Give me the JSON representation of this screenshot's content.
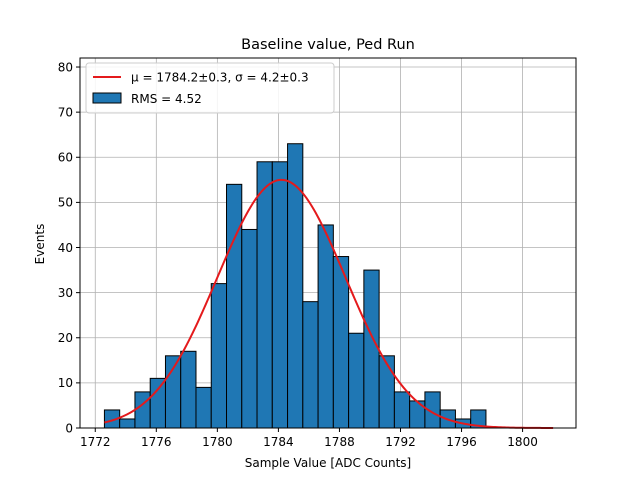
{
  "chart_data": {
    "type": "bar",
    "title": "Baseline value, Ped Run",
    "xlabel": "Sample Value [ADC Counts]",
    "ylabel": "Events",
    "xlim": [
      1771,
      1803.5
    ],
    "ylim": [
      0,
      82
    ],
    "xticks": [
      1772,
      1776,
      1780,
      1784,
      1788,
      1792,
      1796,
      1800
    ],
    "yticks": [
      0,
      10,
      20,
      30,
      40,
      50,
      60,
      70,
      80
    ],
    "grid": true,
    "legend_placement": "top-left",
    "histogram": {
      "name": "RMS = 4.52",
      "bin_start": 1772.6,
      "bin_width": 1,
      "counts": [
        4,
        2,
        8,
        11,
        16,
        17,
        9,
        32,
        54,
        44,
        59,
        59,
        63,
        28,
        45,
        38,
        21,
        35,
        16,
        8,
        6,
        8,
        4,
        2,
        4
      ],
      "color": "#1f77b4",
      "edgecolor": "#000000"
    },
    "fit": {
      "name_mu_label": "μ = 1784.2±0.3, σ = 4.2±0.3",
      "mu": 1784.2,
      "sigma": 4.2,
      "amplitude": 55,
      "x_range": [
        1772.6,
        1802
      ],
      "color": "#e41a1c"
    }
  }
}
